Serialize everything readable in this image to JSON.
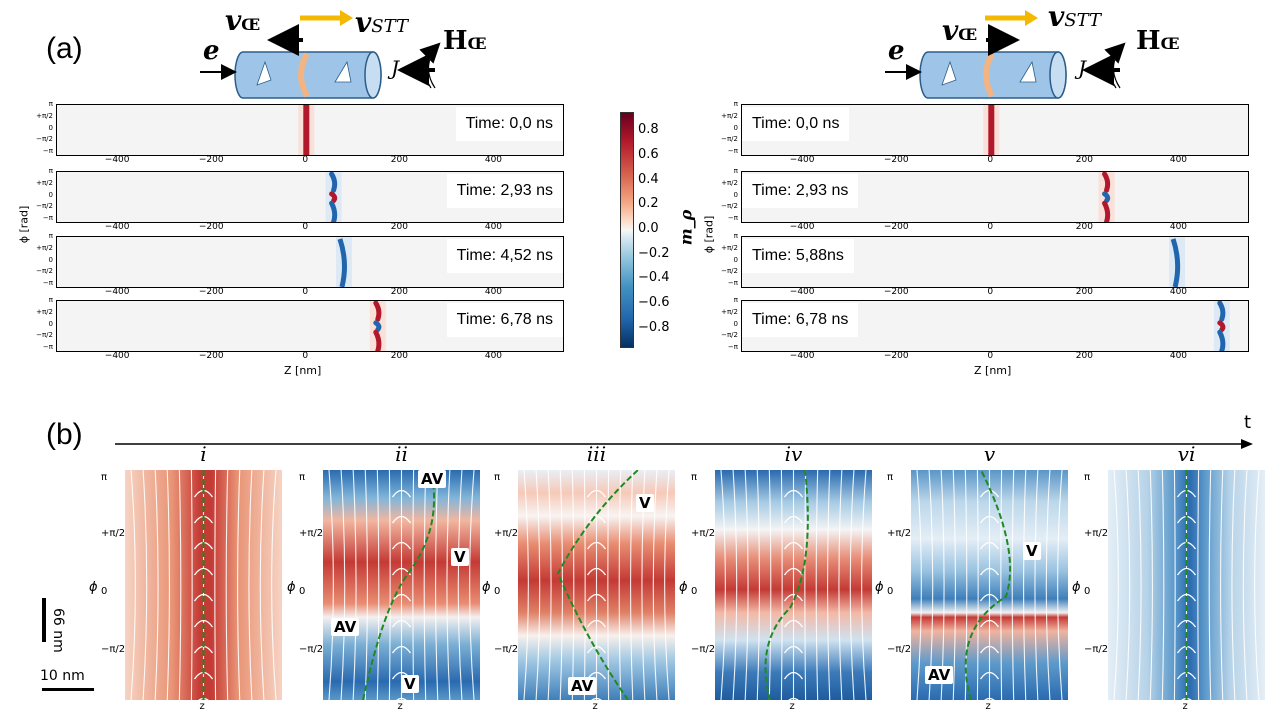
{
  "panel_a": {
    "label": "(a)",
    "diagram_labels": {
      "e": "e",
      "v_dw": "v",
      "v_dw_sub": "Œ",
      "v_stt": "v",
      "v_stt_sub": "STT",
      "j": "J",
      "h": "H",
      "h_sub": "Œ"
    },
    "left": {
      "ylabel": "ϕ [rad]",
      "xlabel": "Z [nm]",
      "snapshots": [
        {
          "time": "Time: 0,0 ns",
          "wall_z": 0,
          "color": "#b2182b",
          "shape": "straight"
        },
        {
          "time": "Time: 2,93 ns",
          "wall_z": 58,
          "color": "#2166ac",
          "shape": "split"
        },
        {
          "time": "Time: 4,52 ns",
          "wall_z": 80,
          "color": "#2166ac",
          "shape": "curved"
        },
        {
          "time": "Time: 6,78 ns",
          "wall_z": 152,
          "color": "#b2182b",
          "shape": "split"
        }
      ]
    },
    "right": {
      "ylabel": "ϕ [rad]",
      "xlabel": "Z [nm]",
      "snapshots": [
        {
          "time": "Time: 0,0 ns",
          "wall_z": 0,
          "color": "#b2182b",
          "shape": "straight"
        },
        {
          "time": "Time: 2,93 ns",
          "wall_z": 245,
          "color": "#b2182b",
          "shape": "split"
        },
        {
          "time": "Time: 5,88ns",
          "wall_z": 395,
          "color": "#2166ac",
          "shape": "curved"
        },
        {
          "time": "Time: 6,78 ns",
          "wall_z": 490,
          "color": "#2166ac",
          "shape": "split"
        }
      ]
    },
    "x_ticks": [
      "−400",
      "−200",
      "0",
      "200",
      "400"
    ],
    "x_tick_values": [
      -400,
      -200,
      0,
      200,
      400
    ],
    "y_ticks": [
      "π",
      "+π/2",
      "0",
      "−π/2",
      "−π"
    ],
    "colorbar": {
      "label": "m_ρ",
      "ticks": [
        "0.8",
        "0.6",
        "0.4",
        "0.2",
        "0.0",
        "−0.2",
        "−0.4",
        "−0.6",
        "−0.8"
      ],
      "tick_values": [
        0.8,
        0.6,
        0.4,
        0.2,
        0.0,
        -0.2,
        -0.4,
        -0.6,
        -0.8
      ],
      "range": [
        -0.95,
        0.95
      ]
    }
  },
  "panel_b": {
    "label": "(b)",
    "time_axis": "t",
    "scale_vertical": "66 nm",
    "scale_horizontal": "10 nm",
    "y_ticks": [
      "π",
      "+π/2",
      "0",
      "−π/2"
    ],
    "ylabel": "ϕ",
    "xlabel": "z",
    "tiles": [
      {
        "roman": "i",
        "defects": []
      },
      {
        "roman": "ii",
        "defects": [
          "AV",
          "V",
          "AV",
          "V"
        ]
      },
      {
        "roman": "iii",
        "defects": [
          "V",
          "AV"
        ]
      },
      {
        "roman": "iv",
        "defects": []
      },
      {
        "roman": "v",
        "defects": [
          "V",
          "AV"
        ]
      },
      {
        "roman": "vi",
        "defects": []
      }
    ]
  }
}
